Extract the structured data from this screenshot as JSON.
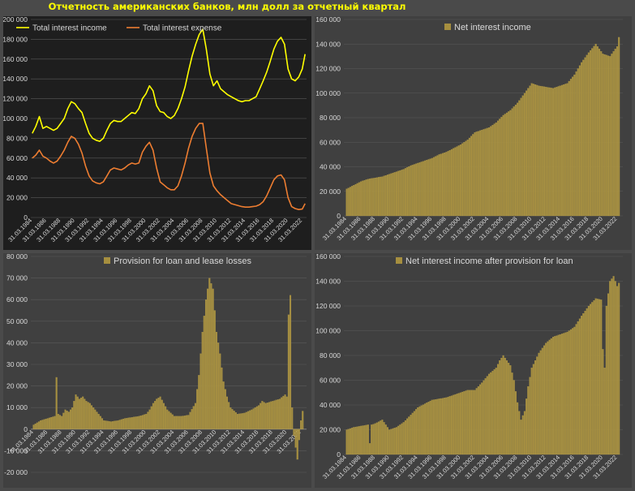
{
  "header": {
    "title": "Отчетность американских банков, млн долл за отчетный квартал"
  },
  "colors": {
    "bar": "#a68f3f",
    "bar_outline": "#c0a750",
    "income_line": "#ffff00",
    "expense_line": "#ed7d31",
    "panel_bg_dark": "#1e1e1e",
    "panel_bg": "#404040",
    "grid": "#5a5a5a"
  },
  "chart_data": [
    {
      "id": "interest",
      "type": "line",
      "ylim": [
        0,
        200000
      ],
      "yticks": [
        0,
        20000,
        40000,
        60000,
        80000,
        100000,
        120000,
        140000,
        160000,
        180000,
        200000
      ],
      "ytick_labels": [
        "0",
        "20 000",
        "40 000",
        "60 000",
        "80 000",
        "100 000",
        "120 000",
        "140 000",
        "160 000",
        "180 000",
        "200 000"
      ],
      "xtick_labels": [
        "31.03.1984",
        "31.03.1986",
        "31.03.1988",
        "31.03.1990",
        "31.03.1992",
        "31.03.1994",
        "31.03.1996",
        "31.03.1998",
        "31.03.2000",
        "31.03.2002",
        "31.03.2004",
        "31.03.2006",
        "31.03.2008",
        "31.03.2010",
        "31.03.2012",
        "31.03.2014",
        "31.03.2016",
        "31.03.2018",
        "31.03.2020",
        "31.03.2022"
      ],
      "legend": "top-left",
      "grid": true,
      "series": [
        {
          "name": "Total interest income",
          "color_key": "income_line",
          "x": [
            1984,
            1984.5,
            1985,
            1985.5,
            1986,
            1986.5,
            1987,
            1987.5,
            1988,
            1988.5,
            1989,
            1989.5,
            1990,
            1990.5,
            1991,
            1991.5,
            1992,
            1992.5,
            1993,
            1993.5,
            1994,
            1994.5,
            1995,
            1995.5,
            1996,
            1996.5,
            1997,
            1997.5,
            1998,
            1998.5,
            1999,
            1999.5,
            2000,
            2000.5,
            2001,
            2001.5,
            2002,
            2002.5,
            2003,
            2003.5,
            2004,
            2004.5,
            2005,
            2005.5,
            2006,
            2006.5,
            2007,
            2007.5,
            2008,
            2008.5,
            2009,
            2009.5,
            2010,
            2010.5,
            2011,
            2011.5,
            2012,
            2012.5,
            2013,
            2013.5,
            2014,
            2014.5,
            2015,
            2015.5,
            2016,
            2016.5,
            2017,
            2017.5,
            2018,
            2018.5,
            2019,
            2019.5,
            2020,
            2020.5,
            2021,
            2021.5,
            2022,
            2022.4
          ],
          "values": [
            85000,
            92000,
            102000,
            90000,
            92000,
            90000,
            88000,
            90000,
            95000,
            100000,
            110000,
            117000,
            115000,
            110000,
            106000,
            95000,
            85000,
            80000,
            78000,
            77000,
            80000,
            88000,
            95000,
            98000,
            97000,
            97000,
            100000,
            103000,
            106000,
            105000,
            110000,
            120000,
            125000,
            133000,
            128000,
            113000,
            107000,
            106000,
            102000,
            100000,
            103000,
            110000,
            120000,
            132000,
            148000,
            163000,
            175000,
            185000,
            190000,
            170000,
            145000,
            133000,
            138000,
            130000,
            127000,
            124000,
            122000,
            120000,
            118000,
            117000,
            118000,
            118000,
            120000,
            122000,
            130000,
            138000,
            147000,
            158000,
            170000,
            178000,
            182000,
            175000,
            150000,
            140000,
            138000,
            142000,
            150000,
            165000
          ]
        },
        {
          "name": "Total interest expense",
          "color_key": "expense_line",
          "x": [
            1984,
            1984.5,
            1985,
            1985.5,
            1986,
            1986.5,
            1987,
            1987.5,
            1988,
            1988.5,
            1989,
            1989.5,
            1990,
            1990.5,
            1991,
            1991.5,
            1992,
            1992.5,
            1993,
            1993.5,
            1994,
            1994.5,
            1995,
            1995.5,
            1996,
            1996.5,
            1997,
            1997.5,
            1998,
            1998.5,
            1999,
            1999.5,
            2000,
            2000.5,
            2001,
            2001.5,
            2002,
            2002.5,
            2003,
            2003.5,
            2004,
            2004.5,
            2005,
            2005.5,
            2006,
            2006.5,
            2007,
            2007.5,
            2008,
            2008.5,
            2009,
            2009.5,
            2010,
            2010.5,
            2011,
            2011.5,
            2012,
            2012.5,
            2013,
            2013.5,
            2014,
            2014.5,
            2015,
            2015.5,
            2016,
            2016.5,
            2017,
            2017.5,
            2018,
            2018.5,
            2019,
            2019.5,
            2020,
            2020.5,
            2021,
            2021.5,
            2022,
            2022.4
          ],
          "values": [
            60000,
            63000,
            68000,
            62000,
            60000,
            57000,
            55000,
            57000,
            62000,
            68000,
            76000,
            82000,
            80000,
            74000,
            65000,
            52000,
            42000,
            37000,
            35000,
            34000,
            36000,
            42000,
            48000,
            50000,
            49000,
            48000,
            50000,
            53000,
            55000,
            54000,
            55000,
            66000,
            72000,
            76000,
            68000,
            50000,
            36000,
            33000,
            30000,
            28000,
            28000,
            32000,
            42000,
            55000,
            70000,
            82000,
            90000,
            95000,
            95000,
            70000,
            45000,
            32000,
            27000,
            23000,
            20000,
            17000,
            14000,
            13000,
            12000,
            11000,
            10500,
            10500,
            11000,
            11500,
            13000,
            16000,
            22000,
            30000,
            38000,
            42000,
            43000,
            38000,
            20000,
            11000,
            9000,
            8000,
            8500,
            14000
          ]
        }
      ]
    },
    {
      "id": "nii",
      "type": "bar",
      "ylim": [
        0,
        160000
      ],
      "yticks": [
        0,
        20000,
        40000,
        60000,
        80000,
        100000,
        120000,
        140000,
        160000
      ],
      "ytick_labels": [
        "0",
        "20 000",
        "40 000",
        "60 000",
        "80 000",
        "100 000",
        "120 000",
        "140 000",
        "160 000"
      ],
      "xtick_labels": [
        "31.03.1984",
        "31.03.1986",
        "31.03.1988",
        "31.03.1990",
        "31.03.1992",
        "31.03.1994",
        "31.03.1996",
        "31.03.1998",
        "31.03.2000",
        "31.03.2002",
        "31.03.2004",
        "31.03.2006",
        "31.03.2008",
        "31.03.2010",
        "31.03.2012",
        "31.03.2014",
        "31.03.2016",
        "31.03.2018",
        "31.03.2020",
        "31.03.2022"
      ],
      "legend": "top-center",
      "series": [
        {
          "name": "Net interest income",
          "x": [
            1984,
            1985,
            1986,
            1987,
            1988,
            1989,
            1990,
            1991,
            1992,
            1993,
            1994,
            1995,
            1996,
            1997,
            1998,
            1999,
            2000,
            2001,
            2002,
            2003,
            2004,
            2005,
            2006,
            2007,
            2008,
            2009,
            2010,
            2011,
            2012,
            2013,
            2014,
            2015,
            2016,
            2017,
            2018,
            2019,
            2020,
            2021,
            2022,
            2022.4
          ],
          "values": [
            22000,
            25000,
            28000,
            30000,
            31000,
            32000,
            34000,
            36000,
            38000,
            41000,
            43000,
            45000,
            47000,
            50000,
            52000,
            55000,
            58000,
            62000,
            68000,
            70000,
            72000,
            76000,
            82000,
            86000,
            92000,
            100000,
            108000,
            106000,
            105000,
            104000,
            106000,
            108000,
            115000,
            125000,
            133000,
            140000,
            132000,
            130000,
            138000,
            150000
          ]
        }
      ]
    },
    {
      "id": "provision",
      "type": "bar",
      "ylim": [
        -20000,
        80000
      ],
      "yticks": [
        -20000,
        -10000,
        0,
        10000,
        20000,
        30000,
        40000,
        50000,
        60000,
        70000,
        80000
      ],
      "ytick_labels": [
        "-20 000",
        "-10 000",
        "0",
        "10 000",
        "20 000",
        "30 000",
        "40 000",
        "50 000",
        "60 000",
        "70 000",
        "80 000"
      ],
      "xtick_labels": [
        "31.03.1984",
        "31.03.1986",
        "31.03.1988",
        "31.03.1990",
        "31.03.1992",
        "31.03.1994",
        "31.03.1996",
        "31.03.1998",
        "31.03.2000",
        "31.03.2002",
        "31.03.2004",
        "31.03.2006",
        "31.03.2008",
        "31.03.2010",
        "31.03.2012",
        "31.03.2014",
        "31.03.2016",
        "31.03.2018",
        "31.03.2020",
        "31.03.2022"
      ],
      "legend": "top-center",
      "series": [
        {
          "name": "Provision for loan and lease losses",
          "x": [
            1984,
            1984.5,
            1985,
            1985.5,
            1986,
            1986.5,
            1987,
            1987.25,
            1987.5,
            1988,
            1988.5,
            1989,
            1989.5,
            1990,
            1990.5,
            1991,
            1991.5,
            1992,
            1992.5,
            1993,
            1993.5,
            1994,
            1995,
            1996,
            1997,
            1998,
            1999,
            2000,
            2000.5,
            2001,
            2001.5,
            2002,
            2002.5,
            2003,
            2004,
            2005,
            2006,
            2007,
            2007.5,
            2008,
            2008.5,
            2009,
            2009.5,
            2010,
            2010.5,
            2011,
            2011.5,
            2012,
            2013,
            2014,
            2015,
            2016,
            2016.5,
            2017,
            2017.5,
            2018,
            2019,
            2019.75,
            2020,
            2020.25,
            2020.5,
            2020.75,
            2021,
            2021.5,
            2022,
            2022.4
          ],
          "values": [
            2000,
            3000,
            4000,
            4500,
            5000,
            5500,
            6000,
            24000,
            7000,
            6000,
            9000,
            8000,
            10000,
            16000,
            14000,
            15000,
            13000,
            12000,
            10000,
            8000,
            6000,
            4000,
            3500,
            4000,
            5000,
            5500,
            6000,
            7000,
            9000,
            12000,
            14000,
            15000,
            12000,
            9000,
            6000,
            6000,
            6500,
            12000,
            25000,
            45000,
            60000,
            70000,
            65000,
            45000,
            35000,
            22000,
            15000,
            10000,
            7000,
            7500,
            9000,
            11000,
            13000,
            12000,
            12500,
            13000,
            14000,
            16000,
            15000,
            53000,
            62000,
            10000,
            -3000,
            -14000,
            4000,
            11000
          ]
        }
      ]
    },
    {
      "id": "nii_after",
      "type": "bar",
      "ylim": [
        0,
        160000
      ],
      "yticks": [
        0,
        20000,
        40000,
        60000,
        80000,
        100000,
        120000,
        140000,
        160000
      ],
      "ytick_labels": [
        "0",
        "20 000",
        "40 000",
        "60 000",
        "80 000",
        "100 000",
        "120 000",
        "140 000",
        "160 000"
      ],
      "xtick_labels": [
        "31.03.1984",
        "31.03.1986",
        "31.03.1988",
        "31.03.1990",
        "31.03.1992",
        "31.03.1994",
        "31.03.1996",
        "31.03.1998",
        "31.03.2000",
        "31.03.2002",
        "31.03.2004",
        "31.03.2006",
        "31.03.2008",
        "31.03.2010",
        "31.03.2012",
        "31.03.2014",
        "31.03.2016",
        "31.03.2018",
        "31.03.2020",
        "31.03.2022"
      ],
      "legend": "top-center",
      "series": [
        {
          "name": "Net interest income after provision for loan",
          "x": [
            1984,
            1985,
            1986,
            1987,
            1987.25,
            1987.5,
            1988,
            1989,
            1990,
            1991,
            1992,
            1993,
            1994,
            1995,
            1996,
            1997,
            1998,
            1999,
            2000,
            2001,
            2002,
            2003,
            2004,
            2005,
            2005.5,
            2006,
            2006.5,
            2007,
            2007.5,
            2008,
            2008.5,
            2009,
            2009.5,
            2010,
            2011,
            2012,
            2013,
            2014,
            2015,
            2016,
            2017,
            2018,
            2019,
            2019.75,
            2020,
            2020.25,
            2020.5,
            2021,
            2021.5,
            2022,
            2022.4
          ],
          "values": [
            20000,
            22000,
            23000,
            24000,
            9000,
            24000,
            25000,
            28000,
            20000,
            22000,
            26000,
            32000,
            38000,
            41000,
            44000,
            45000,
            46000,
            48000,
            50000,
            52000,
            52000,
            58000,
            65000,
            70000,
            76000,
            80000,
            76000,
            72000,
            60000,
            42000,
            28000,
            35000,
            55000,
            70000,
            82000,
            90000,
            95000,
            97000,
            99000,
            103000,
            112000,
            120000,
            126000,
            125000,
            85000,
            70000,
            120000,
            140000,
            144000,
            136000,
            140000
          ]
        }
      ]
    }
  ]
}
